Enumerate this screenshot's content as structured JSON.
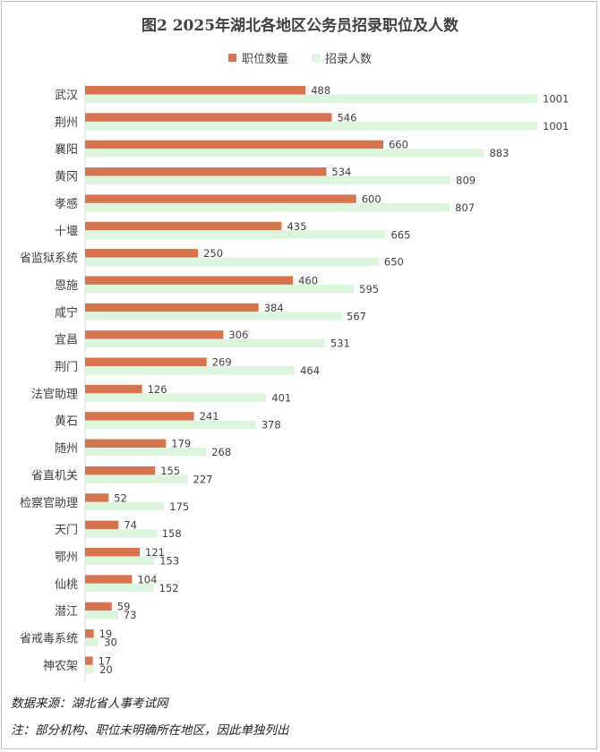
{
  "chart_data": {
    "type": "bar",
    "orientation": "horizontal",
    "title": "图2 2025年湖北各地区公务员招录职位及人数",
    "legend_position": "top",
    "categories": [
      "武汉",
      "荆州",
      "襄阳",
      "黄冈",
      "孝感",
      "十堰",
      "省监狱系统",
      "恩施",
      "咸宁",
      "宜昌",
      "荆门",
      "法官助理",
      "黄石",
      "随州",
      "省直机关",
      "检察官助理",
      "天门",
      "鄂州",
      "仙桃",
      "潜江",
      "省戒毒系统",
      "神农架"
    ],
    "series": [
      {
        "name": "职位数量",
        "color": "#d6744f",
        "values": [
          488,
          546,
          660,
          534,
          600,
          435,
          250,
          460,
          384,
          306,
          269,
          126,
          241,
          179,
          155,
          52,
          74,
          121,
          104,
          59,
          19,
          17
        ]
      },
      {
        "name": "招录人数",
        "color": "#dcf5dc",
        "values": [
          1001,
          1001,
          883,
          809,
          807,
          665,
          650,
          595,
          567,
          531,
          464,
          401,
          378,
          268,
          227,
          175,
          158,
          153,
          152,
          73,
          30,
          20
        ]
      }
    ],
    "xlim": [
      0,
      1001
    ],
    "grid": false
  },
  "footer": {
    "source": "数据来源：湖北省人事考试网",
    "note": "注：部分机构、职位未明确所在地区，因此单独列出"
  }
}
